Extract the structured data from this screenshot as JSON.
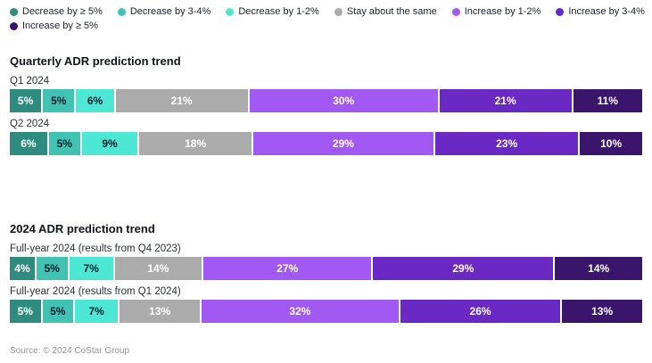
{
  "source": "Source: © 2024 CoStar Group",
  "legend": {
    "row_break_index": 6,
    "items": [
      {
        "label": "Decrease by ≥ 5%",
        "color": "#2E8B80",
        "text_color": "#FFFFFF"
      },
      {
        "label": "Decrease by 3-4%",
        "color": "#41C3B3",
        "text_color": "#0E1B2C"
      },
      {
        "label": "Decrease by 1-2%",
        "color": "#4DE8D5",
        "text_color": "#0E1B2C"
      },
      {
        "label": "Stay about the same",
        "color": "#ABABAB",
        "text_color": "#FFFFFF"
      },
      {
        "label": "Increase by 1-2%",
        "color": "#A259F3",
        "text_color": "#FFFFFF"
      },
      {
        "label": "Increase by 3-4%",
        "color": "#6A28C4",
        "text_color": "#FFFFFF"
      },
      {
        "label": "Increase by ≥ 5%",
        "color": "#3A156B",
        "text_color": "#FFFFFF"
      }
    ]
  },
  "chart_data": [
    {
      "type": "bar",
      "variant": "stacked-horizontal",
      "title": "Quarterly ADR prediction trend",
      "unit": "%",
      "xlim": [
        0,
        100
      ],
      "legend_position": "top",
      "categories": [
        "Decrease by ≥ 5%",
        "Decrease by 3-4%",
        "Decrease by 1-2%",
        "Stay about the same",
        "Increase by 1-2%",
        "Increase by 3-4%",
        "Increase by ≥ 5%"
      ],
      "rows": [
        {
          "label": "Q1 2024",
          "values": [
            5,
            5,
            6,
            21,
            30,
            21,
            11
          ]
        },
        {
          "label": "Q2 2024",
          "values": [
            6,
            5,
            9,
            18,
            29,
            23,
            10
          ]
        }
      ]
    },
    {
      "type": "bar",
      "variant": "stacked-horizontal",
      "title": "2024 ADR prediction trend",
      "unit": "%",
      "xlim": [
        0,
        100
      ],
      "legend_position": "top",
      "categories": [
        "Decrease by ≥ 5%",
        "Decrease by 3-4%",
        "Decrease by 1-2%",
        "Stay about the same",
        "Increase by 1-2%",
        "Increase by 3-4%",
        "Increase by ≥ 5%"
      ],
      "rows": [
        {
          "label": "Full-year 2024 (results from Q4 2023)",
          "values": [
            4,
            5,
            7,
            14,
            27,
            29,
            14
          ]
        },
        {
          "label": "Full-year 2024 (results from Q1 2024)",
          "values": [
            5,
            5,
            7,
            13,
            32,
            26,
            13
          ]
        }
      ]
    }
  ]
}
